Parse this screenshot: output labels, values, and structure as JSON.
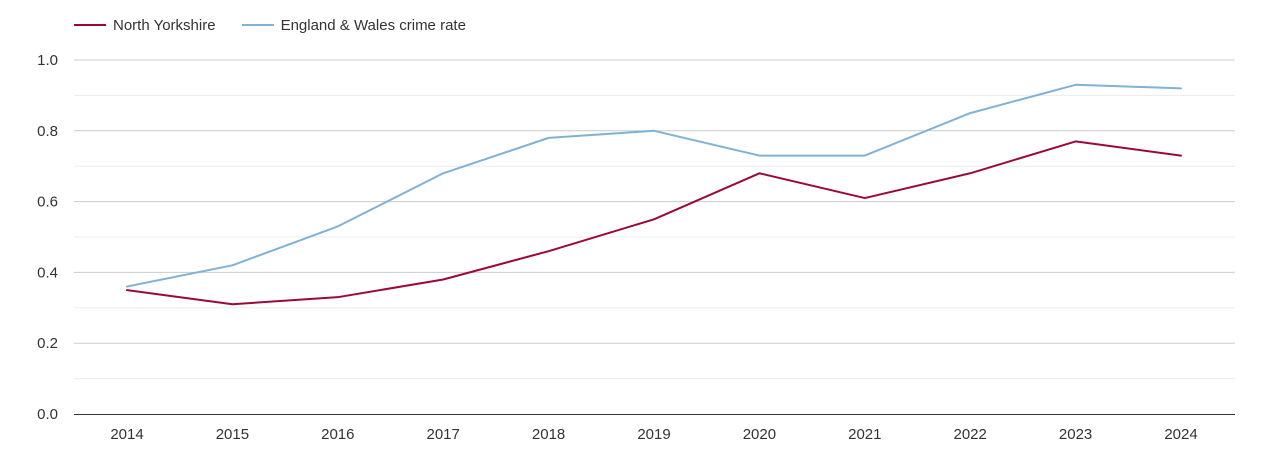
{
  "chart_data": {
    "type": "line",
    "title": "",
    "xlabel": "",
    "ylabel": "",
    "categories": [
      "2014",
      "2015",
      "2016",
      "2017",
      "2018",
      "2019",
      "2020",
      "2021",
      "2022",
      "2023",
      "2024"
    ],
    "series": [
      {
        "name": "North Yorkshire",
        "color": "#9b0a35",
        "values": [
          0.35,
          0.31,
          0.33,
          0.38,
          0.46,
          0.55,
          0.68,
          0.61,
          0.68,
          0.77,
          0.73
        ]
      },
      {
        "name": "England & Wales crime rate",
        "color": "#7fb2d4",
        "values": [
          0.36,
          0.42,
          0.53,
          0.68,
          0.78,
          0.8,
          0.73,
          0.73,
          0.85,
          0.93,
          0.92
        ]
      }
    ],
    "ylim": [
      0,
      1.0
    ],
    "yticks": [
      "0.0",
      "0.2",
      "0.4",
      "0.6",
      "0.8",
      "1.0"
    ],
    "grid": true,
    "legend_position": "top-left"
  }
}
